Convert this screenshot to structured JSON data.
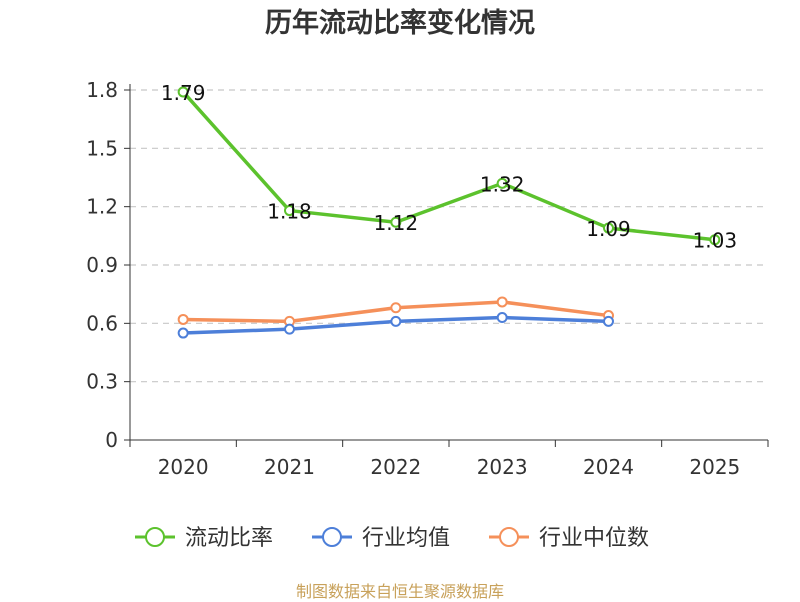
{
  "chart_data": {
    "type": "line",
    "title": "历年流动比率变化情况",
    "categories": [
      "2020",
      "2021",
      "2022",
      "2023",
      "2024",
      "2025"
    ],
    "ylim": [
      0,
      1.8
    ],
    "yticks": [
      "0",
      "0.3",
      "0.6",
      "0.9",
      "1.2",
      "1.5",
      "1.8"
    ],
    "series": [
      {
        "name": "流动比率",
        "color": "#5cc22d",
        "values": [
          1.79,
          1.18,
          1.12,
          1.32,
          1.09,
          1.03
        ],
        "labels": [
          "1.79",
          "1.18",
          "1.12",
          "1.32",
          "1.09",
          "1.03"
        ]
      },
      {
        "name": "行业均值",
        "color": "#4d7fd9",
        "values": [
          0.55,
          0.57,
          0.61,
          0.63,
          0.61,
          null
        ]
      },
      {
        "name": "行业中位数",
        "color": "#f5905a",
        "values": [
          0.62,
          0.61,
          0.68,
          0.71,
          0.64,
          null
        ]
      }
    ],
    "legend_position": "bottom",
    "grid": true
  },
  "footer": {
    "source": "制图数据来自恒生聚源数据库"
  }
}
